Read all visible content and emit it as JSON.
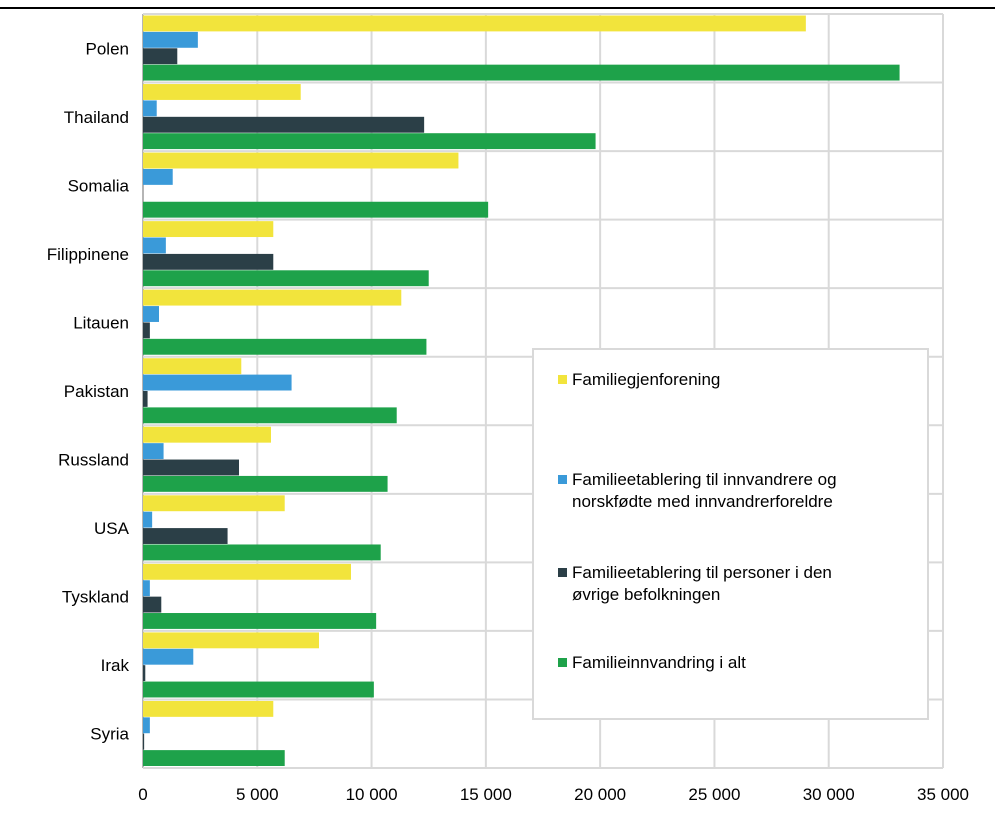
{
  "chart_data": {
    "type": "bar",
    "orientation": "horizontal",
    "title": "",
    "xlabel": "",
    "ylabel": "",
    "xlim": [
      0,
      35000
    ],
    "x_ticks": [
      0,
      5000,
      10000,
      15000,
      20000,
      25000,
      30000,
      35000
    ],
    "x_tick_labels": [
      "0",
      "5 000",
      "10 000",
      "15 000",
      "20 000",
      "25 000",
      "30 000",
      "35 000"
    ],
    "grid": true,
    "legend_position": "center-right",
    "categories": [
      "Polen",
      "Thailand",
      "Somalia",
      "Filippinene",
      "Litauen",
      "Pakistan",
      "Russland",
      "USA",
      "Tyskland",
      "Irak",
      "Syria"
    ],
    "series": [
      {
        "name": "Familiegjenforening",
        "color": "#f2e43c",
        "values": [
          29000,
          6900,
          13800,
          5700,
          11300,
          4300,
          5600,
          6200,
          9100,
          7700,
          5700
        ]
      },
      {
        "name": "Familieetablering til innvandrere og norskfødte med innvandrerforeldre",
        "color": "#3a9ad9",
        "values": [
          2400,
          600,
          1300,
          1000,
          700,
          6500,
          900,
          400,
          300,
          2200,
          300
        ]
      },
      {
        "name": "Familieetablering til personer i den øvrige befolkningen",
        "color": "#2b3f47",
        "values": [
          1500,
          12300,
          0,
          5700,
          300,
          200,
          4200,
          3700,
          800,
          100,
          50
        ]
      },
      {
        "name": "Familieinnvandring i alt",
        "color": "#1ea24a",
        "values": [
          33100,
          19800,
          15100,
          12500,
          12400,
          11100,
          10700,
          10400,
          10200,
          10100,
          6200
        ]
      }
    ]
  }
}
